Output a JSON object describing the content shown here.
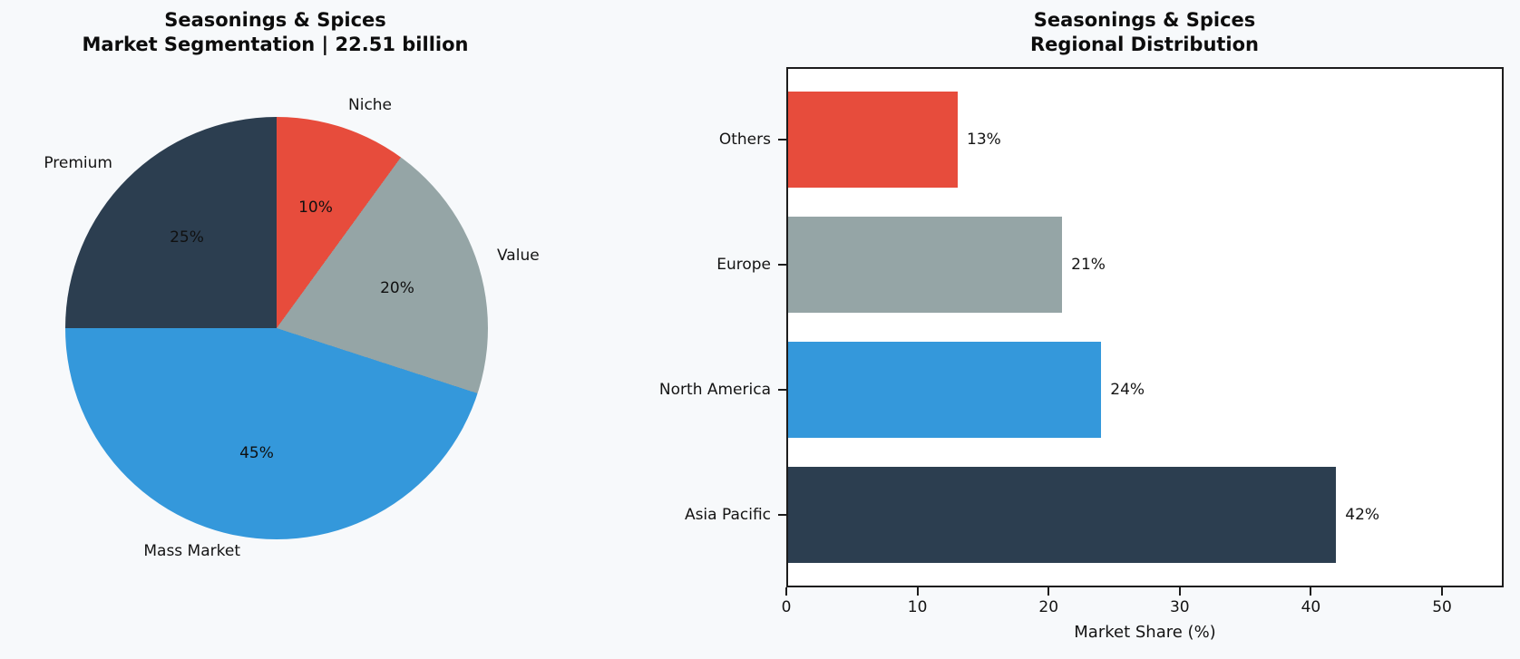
{
  "figure": {
    "background_color": "#f7f9fb",
    "plot_background_color": "#ffffff",
    "axis_color": "#1c1c1c"
  },
  "pie": {
    "title_line1": "Seasonings & Spices",
    "title_line2": "Market Segmentation | 22.51 billion",
    "slice_labels": [
      "Niche",
      "Value",
      "Mass Market",
      "Premium"
    ],
    "pct_labels": [
      "10%",
      "20%",
      "45%",
      "25%"
    ]
  },
  "bar": {
    "title_line1": "Seasonings & Spices",
    "title_line2": "Regional Distribution",
    "xlabel": "Market Share (%)",
    "category_labels": [
      "Others",
      "Europe",
      "North America",
      "Asia Pacific"
    ],
    "value_labels": [
      "13%",
      "21%",
      "24%",
      "42%"
    ],
    "x_tick_labels": [
      "0",
      "10",
      "20",
      "30",
      "40",
      "50"
    ]
  },
  "chart_data": [
    {
      "type": "pie",
      "title": "Seasonings & Spices\nMarket Segmentation | 22.51 billion",
      "total_label": "22.51 billion",
      "labels": [
        "Niche",
        "Value",
        "Mass Market",
        "Premium"
      ],
      "values": [
        10,
        20,
        45,
        25
      ],
      "unit": "%",
      "colors": [
        "#e74c3c",
        "#95a5a6",
        "#3498db",
        "#2c3e50"
      ],
      "start_angle": "90deg (12 o'clock), clockwise",
      "legend_position": "none (direct labels at 1.1r, percent labels at 0.6r)"
    },
    {
      "type": "bar",
      "orientation": "horizontal",
      "title": "Seasonings & Spices\nRegional Distribution",
      "categories": [
        "Others",
        "Europe",
        "North America",
        "Asia Pacific"
      ],
      "values": [
        13,
        21,
        24,
        42
      ],
      "unit": "%",
      "colors": [
        "#e74c3c",
        "#95a5a6",
        "#3498db",
        "#2c3e50"
      ],
      "bar_labels": [
        "13%",
        "21%",
        "24%",
        "42%"
      ],
      "xlabel": "Market Share (%)",
      "ylabel": "",
      "xlim": [
        0,
        54.7
      ],
      "x_ticks": [
        0,
        10,
        20,
        30,
        40,
        50
      ],
      "grid": false,
      "legend_position": "none"
    }
  ]
}
